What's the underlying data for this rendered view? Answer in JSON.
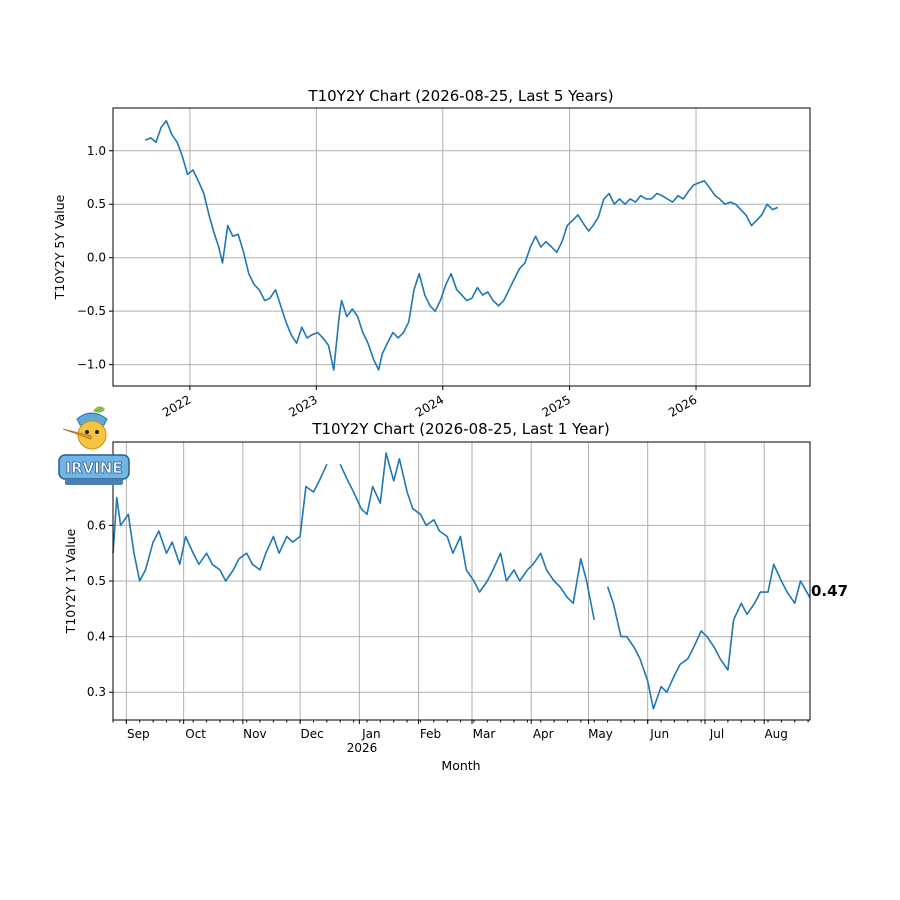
{
  "chart_data": [
    {
      "type": "line",
      "title": "T10Y2Y Chart (2026-08-25, Last 5 Years)",
      "xlabel": "",
      "ylabel": "T10Y2Y 5Y Value",
      "x_tick_labels": [
        "2022",
        "2023",
        "2024",
        "2025",
        "2026"
      ],
      "y_ticks": [
        -1.0,
        -0.5,
        0.0,
        0.5,
        1.0
      ],
      "y_tick_labels": [
        "−1.0",
        "−0.5",
        "0.0",
        "0.5",
        "1.0"
      ],
      "xlim": [
        "2021-05-24",
        "2026-11-26"
      ],
      "ylim": [
        -1.2,
        1.4
      ],
      "grid": true,
      "color": "#1f77b4",
      "series": [
        {
          "x": [
            "2021-08-25",
            "2021-09-10",
            "2021-09-25",
            "2021-10-10",
            "2021-10-25",
            "2021-11-10",
            "2021-11-25",
            "2021-12-10",
            "2021-12-25",
            "2022-01-10",
            "2022-01-25",
            "2022-02-10",
            "2022-02-25",
            "2022-03-10",
            "2022-03-25",
            "2022-04-05",
            "2022-04-20",
            "2022-05-05",
            "2022-05-20",
            "2022-06-05",
            "2022-06-20",
            "2022-07-05",
            "2022-07-20",
            "2022-08-05",
            "2022-08-20",
            "2022-09-05",
            "2022-09-20",
            "2022-10-05",
            "2022-10-20",
            "2022-11-05",
            "2022-11-20",
            "2022-12-05",
            "2022-12-20",
            "2023-01-05",
            "2023-01-20",
            "2023-02-05",
            "2023-02-20",
            "2023-03-08",
            "2023-03-15",
            "2023-03-30",
            "2023-04-15",
            "2023-04-30",
            "2023-05-15",
            "2023-05-30",
            "2023-06-15",
            "2023-06-30",
            "2023-07-10",
            "2023-07-25",
            "2023-08-10",
            "2023-08-25",
            "2023-09-10",
            "2023-09-25",
            "2023-10-10",
            "2023-10-25",
            "2023-11-10",
            "2023-11-25",
            "2023-12-10",
            "2023-12-25",
            "2024-01-10",
            "2024-01-25",
            "2024-02-10",
            "2024-02-25",
            "2024-03-10",
            "2024-03-25",
            "2024-04-10",
            "2024-04-25",
            "2024-05-10",
            "2024-05-25",
            "2024-06-10",
            "2024-06-25",
            "2024-07-10",
            "2024-07-25",
            "2024-08-10",
            "2024-08-25",
            "2024-09-10",
            "2024-09-25",
            "2024-10-10",
            "2024-10-25",
            "2024-11-10",
            "2024-11-25",
            "2024-12-10",
            "2024-12-25",
            "2025-01-10",
            "2025-01-25",
            "2025-02-10",
            "2025-02-25",
            "2025-03-10",
            "2025-03-25",
            "2025-04-10",
            "2025-04-25",
            "2025-05-10",
            "2025-05-25",
            "2025-06-10",
            "2025-06-25",
            "2025-07-10",
            "2025-07-25",
            "2025-08-10",
            "2025-08-25",
            "2025-09-10",
            "2025-09-25",
            "2025-10-10",
            "2025-10-25",
            "2025-11-10",
            "2025-11-25",
            "2025-12-10",
            "2025-12-25",
            "2026-01-10",
            "2026-01-25",
            "2026-02-10",
            "2026-02-25",
            "2026-03-10",
            "2026-03-25",
            "2026-04-10",
            "2026-04-25",
            "2026-05-10",
            "2026-05-25",
            "2026-06-10",
            "2026-06-25",
            "2026-07-10",
            "2026-07-25",
            "2026-08-10",
            "2026-08-25"
          ],
          "y": [
            1.1,
            1.12,
            1.08,
            1.22,
            1.28,
            1.15,
            1.08,
            0.95,
            0.78,
            0.82,
            0.72,
            0.6,
            0.4,
            0.25,
            0.1,
            -0.05,
            0.3,
            0.2,
            0.22,
            0.05,
            -0.15,
            -0.25,
            -0.3,
            -0.4,
            -0.38,
            -0.3,
            -0.45,
            -0.6,
            -0.72,
            -0.8,
            -0.65,
            -0.75,
            -0.72,
            -0.7,
            -0.75,
            -0.82,
            -1.05,
            -0.55,
            -0.4,
            -0.55,
            -0.48,
            -0.55,
            -0.7,
            -0.8,
            -0.95,
            -1.05,
            -0.9,
            -0.8,
            -0.7,
            -0.75,
            -0.7,
            -0.6,
            -0.3,
            -0.15,
            -0.35,
            -0.45,
            -0.5,
            -0.4,
            -0.25,
            -0.15,
            -0.3,
            -0.35,
            -0.4,
            -0.38,
            -0.28,
            -0.35,
            -0.32,
            -0.4,
            -0.45,
            -0.4,
            -0.3,
            -0.2,
            -0.1,
            -0.05,
            0.1,
            0.2,
            0.1,
            0.15,
            0.1,
            0.05,
            0.15,
            0.3,
            0.35,
            0.4,
            0.32,
            0.25,
            0.3,
            0.38,
            0.55,
            0.6,
            0.5,
            0.55,
            0.5,
            0.55,
            0.52,
            0.58,
            0.55,
            0.55,
            0.6,
            0.58,
            0.55,
            0.52,
            0.58,
            0.55,
            0.62,
            0.68,
            0.7,
            0.72,
            0.65,
            0.58,
            0.55,
            0.5,
            0.52,
            0.5,
            0.45,
            0.4,
            0.3,
            0.35,
            0.4,
            0.5,
            0.45,
            0.47
          ]
        }
      ]
    },
    {
      "type": "line",
      "title": "T10Y2Y Chart (2026-08-25, Last 1 Year)",
      "xlabel": "Month",
      "ylabel": "T10Y2Y 1Y Value",
      "x_tick_labels": [
        "Sep",
        "Oct",
        "Nov",
        "Dec",
        "Jan",
        "Feb",
        "Mar",
        "Apr",
        "May",
        "Jun",
        "Jul",
        "Aug"
      ],
      "x_sub_label": "2026",
      "y_ticks": [
        0.3,
        0.4,
        0.5,
        0.6
      ],
      "y_tick_labels": [
        "0.3",
        "0.4",
        "0.5",
        "0.6"
      ],
      "xlim": [
        "2025-08-25",
        "2026-08-25"
      ],
      "ylim": [
        0.25,
        0.75
      ],
      "grid": true,
      "color": "#1f77b4",
      "last_value_label": "0.47",
      "series": [
        {
          "x": [
            "2025-08-25",
            "2025-08-27",
            "2025-08-29",
            "2025-09-02",
            "2025-09-05",
            "2025-09-08",
            "2025-09-11",
            "2025-09-15",
            "2025-09-18",
            "2025-09-22",
            "2025-09-25",
            "2025-09-29",
            "2025-10-02",
            "2025-10-06",
            "2025-10-09",
            "2025-10-13",
            "2025-10-16",
            "2025-10-20",
            "2025-10-23",
            "2025-10-27",
            "2025-10-30",
            "2025-11-03",
            "2025-11-06",
            "2025-11-10",
            "2025-11-13",
            "2025-11-17",
            "2025-11-20",
            "2025-11-24",
            "2025-11-27",
            "2025-12-01",
            "2025-12-04",
            "2025-12-08",
            "2025-12-11",
            "2025-12-15",
            "2025-12-18",
            "2025-12-22",
            "2025-12-26",
            "2025-12-29",
            "2026-01-02",
            "2026-01-05",
            "2026-01-08",
            "2026-01-12",
            "2026-01-15",
            "2026-01-19",
            "2026-01-22",
            "2026-01-26",
            "2026-01-29",
            "2026-02-02",
            "2026-02-05",
            "2026-02-09",
            "2026-02-12",
            "2026-02-16",
            "2026-02-19",
            "2026-02-23",
            "2026-02-26",
            "2026-03-02",
            "2026-03-05",
            "2026-03-09",
            "2026-03-12",
            "2026-03-16",
            "2026-03-19",
            "2026-03-23",
            "2026-03-26",
            "2026-03-30",
            "2026-04-02",
            "2026-04-06",
            "2026-04-09",
            "2026-04-13",
            "2026-04-16",
            "2026-04-20",
            "2026-04-23",
            "2026-04-27",
            "2026-04-30",
            "2026-05-04",
            "2026-05-07",
            "2026-05-11",
            "2026-05-14",
            "2026-05-18",
            "2026-05-21",
            "2026-05-25",
            "2026-05-28",
            "2026-06-01",
            "2026-06-04",
            "2026-06-08",
            "2026-06-11",
            "2026-06-15",
            "2026-06-18",
            "2026-06-22",
            "2026-06-25",
            "2026-06-29",
            "2026-07-02",
            "2026-07-06",
            "2026-07-09",
            "2026-07-13",
            "2026-07-16",
            "2026-07-20",
            "2026-07-23",
            "2026-07-27",
            "2026-07-30",
            "2026-08-03",
            "2026-08-06",
            "2026-08-10",
            "2026-08-13",
            "2026-08-17",
            "2026-08-20",
            "2026-08-25"
          ],
          "y": [
            0.55,
            0.65,
            0.6,
            0.62,
            0.55,
            0.5,
            0.52,
            0.57,
            0.59,
            0.55,
            0.57,
            0.53,
            0.58,
            0.55,
            0.53,
            0.55,
            0.53,
            0.52,
            0.5,
            0.52,
            0.54,
            0.55,
            0.53,
            0.52,
            0.55,
            0.58,
            0.55,
            0.58,
            0.57,
            0.58,
            0.67,
            0.66,
            0.68,
            0.71,
            null,
            0.71,
            0.68,
            0.66,
            0.63,
            0.62,
            0.67,
            0.64,
            0.73,
            0.68,
            0.72,
            0.66,
            0.63,
            0.62,
            0.6,
            0.61,
            0.59,
            0.58,
            0.55,
            0.58,
            0.52,
            0.5,
            0.48,
            0.5,
            0.52,
            0.55,
            0.5,
            0.52,
            0.5,
            0.52,
            0.53,
            0.55,
            0.52,
            0.5,
            0.49,
            0.47,
            0.46,
            0.54,
            0.5,
            0.43,
            null,
            0.49,
            0.46,
            0.4,
            0.4,
            0.38,
            0.36,
            0.32,
            0.27,
            0.31,
            0.3,
            0.33,
            0.35,
            0.36,
            0.38,
            0.41,
            0.4,
            0.38,
            0.36,
            0.34,
            0.43,
            0.46,
            0.44,
            0.46,
            0.48,
            0.48,
            0.53,
            0.5,
            0.48,
            0.46,
            0.5,
            0.47
          ]
        }
      ]
    }
  ]
}
